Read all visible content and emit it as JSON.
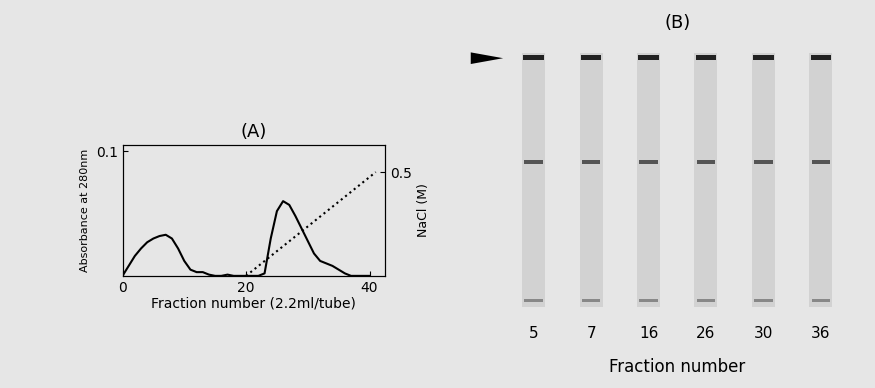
{
  "chart_data": {
    "type": "line",
    "title": "(A)",
    "x_label": "Fraction number (2.2ml/tube)",
    "y_label": "Absorbance at 280nm",
    "y2_label": "NaCl (M)",
    "xlim": [
      0,
      42.5
    ],
    "xticks": [
      0,
      20,
      40
    ],
    "ylim": [
      0,
      0.105
    ],
    "yticks": [
      0.1
    ],
    "y2lim": [
      0,
      0.63
    ],
    "y2ticks": [
      0.5
    ],
    "grid": false,
    "series": [
      {
        "color": "#000000",
        "line_style": "solid",
        "axis": "y",
        "x": [
          0,
          1,
          2,
          3,
          4,
          5,
          6,
          7,
          8,
          9,
          10,
          11,
          12,
          13,
          14,
          15,
          16,
          17,
          18,
          19,
          20,
          21,
          22,
          23,
          24,
          25,
          26,
          27,
          28,
          29,
          30,
          31,
          32,
          33,
          34,
          35,
          36,
          37,
          38,
          39,
          40
        ],
        "values": [
          0,
          0.008,
          0.016,
          0.022,
          0.027,
          0.03,
          0.032,
          0.033,
          0.03,
          0.022,
          0.012,
          0.005,
          0.003,
          0.003,
          0.001,
          0,
          0,
          0.001,
          0,
          0,
          0,
          0,
          0,
          0.002,
          0.03,
          0.052,
          0.06,
          0.057,
          0.048,
          0.038,
          0.028,
          0.018,
          0.012,
          0.01,
          0.008,
          0.005,
          0.002,
          0,
          0,
          0,
          0
        ]
      },
      {
        "color": "#000000",
        "line_style": "dotted",
        "axis": "y2",
        "x": [
          20,
          41
        ],
        "values": [
          0,
          0.5
        ]
      }
    ]
  },
  "gel": {
    "title": "(B)",
    "lanes": [
      "5",
      "7",
      "16",
      "26",
      "30",
      "36"
    ],
    "x_label": "Fraction number"
  }
}
